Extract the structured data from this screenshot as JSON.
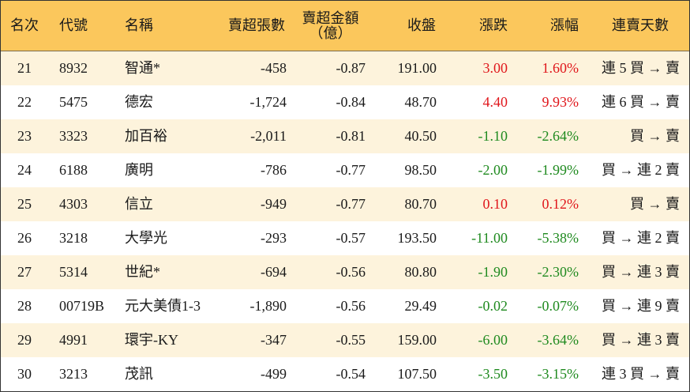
{
  "header": {
    "rank": "名次",
    "code": "代號",
    "name": "名稱",
    "net_sell_lots": "賣超張數",
    "net_sell_amount_line1": "賣超金額",
    "net_sell_amount_line2": "（億）",
    "close": "收盤",
    "change": "漲跌",
    "change_pct": "漲幅",
    "consecutive_days": "連賣天數"
  },
  "colors": {
    "header_bg": "#fbc75c",
    "stripe_bg": "#fdf3dc",
    "up": "#e0161b",
    "down": "#1f8a1f"
  },
  "rows": [
    {
      "rank": "21",
      "code": "8932",
      "name": "智通*",
      "lots": "-458",
      "amount": "-0.87",
      "close": "191.00",
      "change": "3.00",
      "pct": "1.60%",
      "trend": "up",
      "days": "連 5 買 → 賣"
    },
    {
      "rank": "22",
      "code": "5475",
      "name": "德宏",
      "lots": "-1,724",
      "amount": "-0.84",
      "close": "48.70",
      "change": "4.40",
      "pct": "9.93%",
      "trend": "up",
      "days": "連 6 買 → 賣"
    },
    {
      "rank": "23",
      "code": "3323",
      "name": "加百裕",
      "lots": "-2,011",
      "amount": "-0.81",
      "close": "40.50",
      "change": "-1.10",
      "pct": "-2.64%",
      "trend": "down",
      "days": "買 → 賣"
    },
    {
      "rank": "24",
      "code": "6188",
      "name": "廣明",
      "lots": "-786",
      "amount": "-0.77",
      "close": "98.50",
      "change": "-2.00",
      "pct": "-1.99%",
      "trend": "down",
      "days": "買 → 連 2 賣"
    },
    {
      "rank": "25",
      "code": "4303",
      "name": "信立",
      "lots": "-949",
      "amount": "-0.77",
      "close": "80.70",
      "change": "0.10",
      "pct": "0.12%",
      "trend": "up",
      "days": "買 → 賣"
    },
    {
      "rank": "26",
      "code": "3218",
      "name": "大學光",
      "lots": "-293",
      "amount": "-0.57",
      "close": "193.50",
      "change": "-11.00",
      "pct": "-5.38%",
      "trend": "down",
      "days": "買 → 連 2 賣"
    },
    {
      "rank": "27",
      "code": "5314",
      "name": "世紀*",
      "lots": "-694",
      "amount": "-0.56",
      "close": "80.80",
      "change": "-1.90",
      "pct": "-2.30%",
      "trend": "down",
      "days": "買 → 連 3 賣"
    },
    {
      "rank": "28",
      "code": "00719B",
      "name": "元大美債1-3",
      "lots": "-1,890",
      "amount": "-0.56",
      "close": "29.49",
      "change": "-0.02",
      "pct": "-0.07%",
      "trend": "down",
      "days": "買 → 連 9 賣"
    },
    {
      "rank": "29",
      "code": "4991",
      "name": "環宇-KY",
      "lots": "-347",
      "amount": "-0.55",
      "close": "159.00",
      "change": "-6.00",
      "pct": "-3.64%",
      "trend": "down",
      "days": "買 → 連 3 賣"
    },
    {
      "rank": "30",
      "code": "3213",
      "name": "茂訊",
      "lots": "-499",
      "amount": "-0.54",
      "close": "107.50",
      "change": "-3.50",
      "pct": "-3.15%",
      "trend": "down",
      "days": "連 3 買 → 賣"
    }
  ]
}
